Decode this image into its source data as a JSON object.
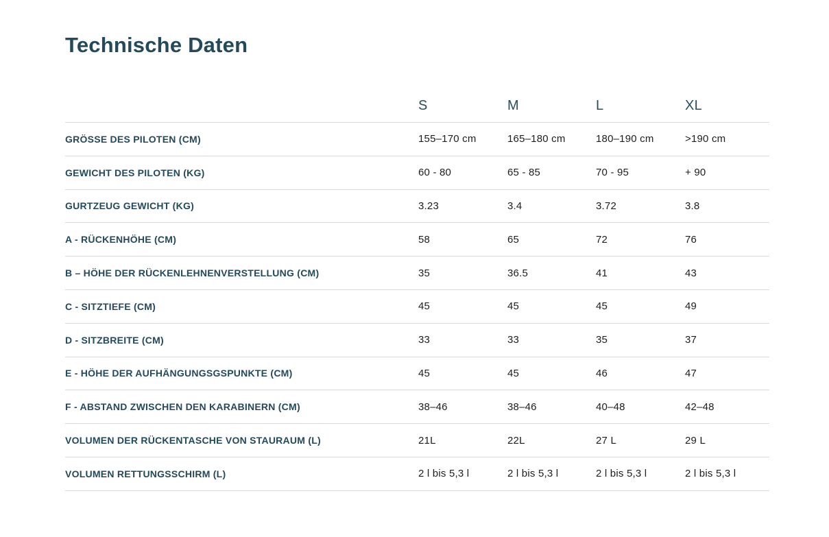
{
  "page": {
    "title": "Technische Daten"
  },
  "table": {
    "size_headers": [
      "S",
      "M",
      "L",
      "XL"
    ],
    "rows": [
      {
        "label": "GRÖSSE DES PILOTEN (CM)",
        "values": [
          "155–170 cm",
          "165–180 cm",
          "180–190 cm",
          ">190 cm"
        ]
      },
      {
        "label": "GEWICHT DES PILOTEN (KG)",
        "values": [
          "60 - 80",
          "65 - 85",
          "70 - 95",
          "+ 90"
        ]
      },
      {
        "label": "GURTZEUG GEWICHT (KG)",
        "values": [
          "3.23",
          "3.4",
          "3.72",
          "3.8"
        ]
      },
      {
        "label": "A - RÜCKENHÖHE (CM)",
        "values": [
          "58",
          "65",
          "72",
          "76"
        ]
      },
      {
        "label": "B – HÖHE DER RÜCKENLEHNENVERSTELLUNG (CM)",
        "values": [
          "35",
          "36.5",
          "41",
          "43"
        ]
      },
      {
        "label": "C - SITZTIEFE (CM)",
        "values": [
          "45",
          "45",
          "45",
          "49"
        ]
      },
      {
        "label": "D - SITZBREITE (CM)",
        "values": [
          "33",
          "33",
          "35",
          "37"
        ]
      },
      {
        "label": "E - HÖHE DER AUFHÄNGUNGSGSPUNKTE (CM)",
        "values": [
          "45",
          "45",
          "46",
          "47"
        ]
      },
      {
        "label": "F - ABSTAND ZWISCHEN DEN KARABINERN (CM)",
        "values": [
          "38–46",
          "38–46",
          "40–48",
          "42–48"
        ]
      },
      {
        "label": "VOLUMEN DER RÜCKENTASCHE VON STAURAUM (L)",
        "values": [
          "21L",
          "22L",
          "27 L",
          "29 L"
        ]
      },
      {
        "label": "VOLUMEN RETTUNGSSCHIRM (L)",
        "values": [
          "2 l bis 5,3 l",
          "2 l bis 5,3 l",
          "2 l bis 5,3 l",
          "2 l bis 5,3 l"
        ]
      }
    ]
  },
  "colors": {
    "heading_teal": "#24495a",
    "value_text": "#1d1d1b",
    "divider": "#d9d9d9",
    "background": "#ffffff"
  }
}
